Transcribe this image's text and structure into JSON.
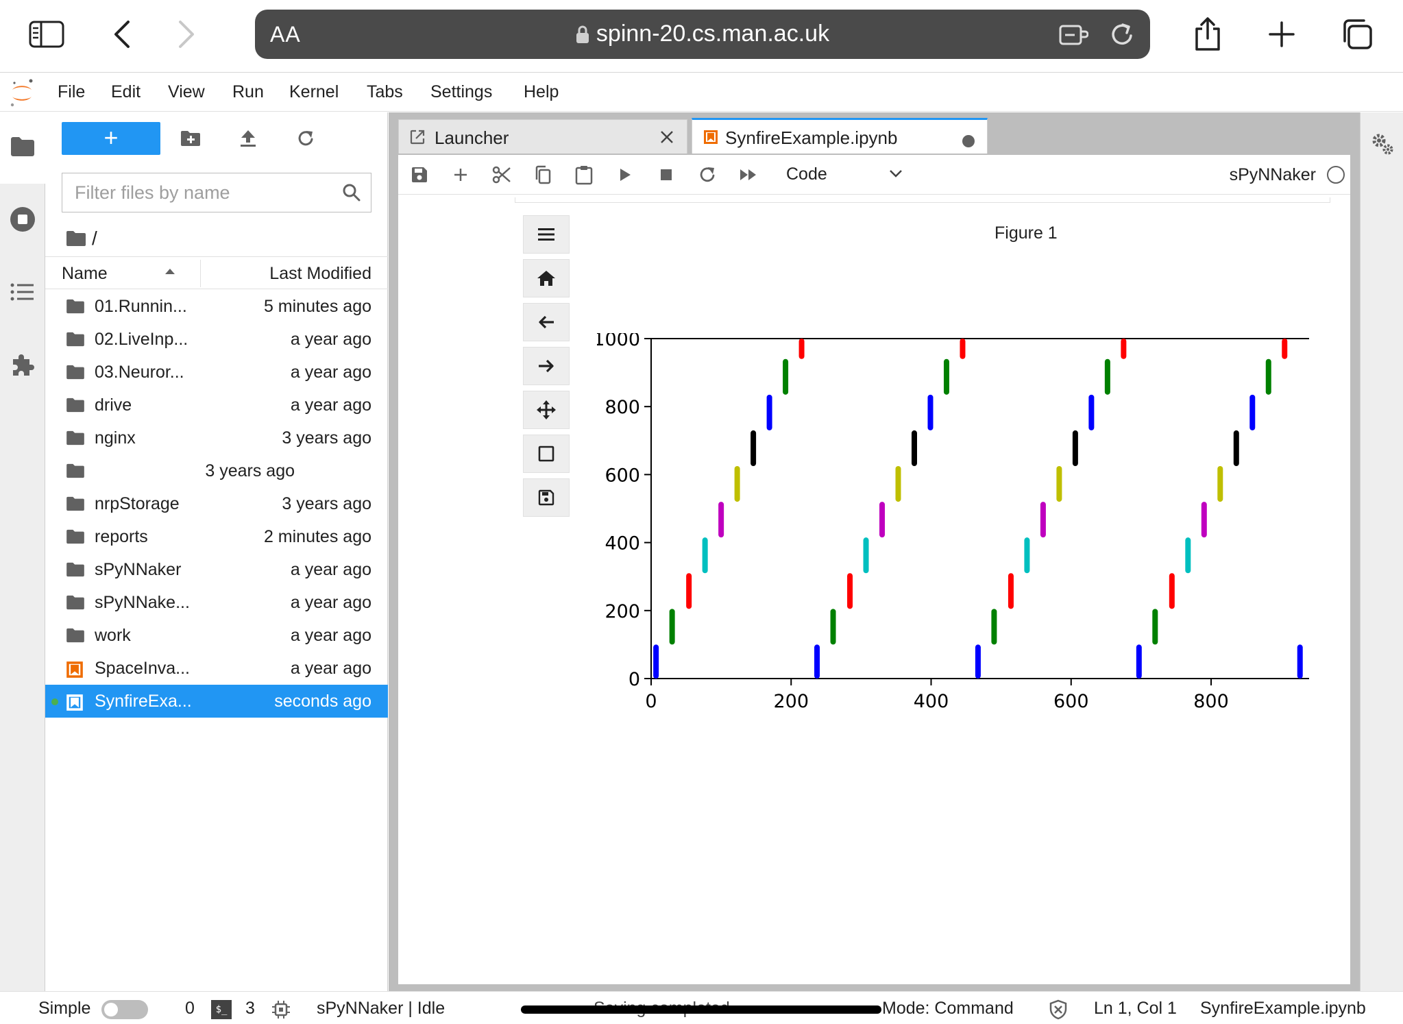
{
  "browser": {
    "text_size_label": "AA",
    "url": "spinn-20.cs.man.ac.uk"
  },
  "menu": [
    "File",
    "Edit",
    "View",
    "Run",
    "Kernel",
    "Tabs",
    "Settings",
    "Help"
  ],
  "file_browser": {
    "new_button_label": "+",
    "filter_placeholder": "Filter files by name",
    "breadcrumb": "/",
    "col_name": "Name",
    "col_modified": "Last Modified",
    "files": [
      {
        "name": "01.Runnin...",
        "modified": "5 minutes ago",
        "icon": "folder-icon"
      },
      {
        "name": "02.LiveInp...",
        "modified": "a year ago",
        "icon": "folder-icon"
      },
      {
        "name": "03.Neuror...",
        "modified": "a year ago",
        "icon": "folder-icon"
      },
      {
        "name": "drive",
        "modified": "a year ago",
        "icon": "folder-icon"
      },
      {
        "name": "nginx",
        "modified": "3 years ago",
        "icon": "folder-icon"
      },
      {
        "name": "",
        "modified": "3 years ago",
        "icon": "folder-icon"
      },
      {
        "name": "nrpStorage",
        "modified": "3 years ago",
        "icon": "folder-icon"
      },
      {
        "name": "reports",
        "modified": "2 minutes ago",
        "icon": "folder-icon"
      },
      {
        "name": "sPyNNaker",
        "modified": "a year ago",
        "icon": "folder-icon"
      },
      {
        "name": "sPyNNake...",
        "modified": "a year ago",
        "icon": "folder-icon"
      },
      {
        "name": "work",
        "modified": "a year ago",
        "icon": "folder-icon"
      },
      {
        "name": "SpaceInva...",
        "modified": "a year ago",
        "icon": "notebook-icon"
      },
      {
        "name": "SynfireExa...",
        "modified": "seconds ago",
        "icon": "notebook-icon",
        "selected": true,
        "running": true
      }
    ]
  },
  "tabs": [
    {
      "label": "Launcher",
      "active": false
    },
    {
      "label": "SynfireExample.ipynb",
      "active": true
    }
  ],
  "notebook": {
    "cell_type": "Code",
    "kernel": "sPyNNaker"
  },
  "figure": {
    "title": "Figure 1"
  },
  "chart_data": {
    "type": "scatter",
    "title": "Figure 1",
    "xlabel": "",
    "ylabel": "",
    "xlim": [
      0,
      940
    ],
    "ylim": [
      0,
      1000
    ],
    "x_ticks": [
      0,
      200,
      400,
      600,
      800
    ],
    "y_ticks": [
      0,
      200,
      400,
      600,
      800,
      1000
    ],
    "marker": "vertical raster segments (spike trains)",
    "group_colors": [
      "#0000ff",
      "#008000",
      "#ff0000",
      "#00bfbf",
      "#bf00bf",
      "#bfbf00",
      "#000000",
      "#0000ff",
      "#008000",
      "#ff0000"
    ],
    "series": [
      {
        "cycle": 1,
        "x": [
          7,
          30,
          54,
          77,
          100,
          123,
          146,
          169,
          192,
          215
        ]
      },
      {
        "cycle": 2,
        "x": [
          237,
          260,
          284,
          307,
          330,
          353,
          376,
          399,
          422,
          445
        ]
      },
      {
        "cycle": 3,
        "x": [
          467,
          490,
          514,
          537,
          560,
          583,
          606,
          629,
          652,
          675
        ]
      },
      {
        "cycle": 4,
        "x": [
          697,
          720,
          744,
          767,
          790,
          813,
          836,
          859,
          882,
          905
        ]
      },
      {
        "cycle": 5,
        "x": [
          927
        ]
      }
    ],
    "group_y_ranges": [
      [
        0,
        100
      ],
      [
        100,
        205
      ],
      [
        205,
        310
      ],
      [
        310,
        415
      ],
      [
        415,
        520
      ],
      [
        520,
        625
      ],
      [
        625,
        730
      ],
      [
        730,
        835
      ],
      [
        835,
        940
      ],
      [
        940,
        1000
      ]
    ]
  },
  "status_bar": {
    "mode_label": "Simple",
    "kernels_count": "0",
    "terminals_count": "3",
    "kernel_status": "sPyNNaker | Idle",
    "saving": "Saving completed",
    "mode": "Mode: Command",
    "cursor": "Ln 1, Col 1",
    "filename": "SynfireExample.ipynb"
  }
}
